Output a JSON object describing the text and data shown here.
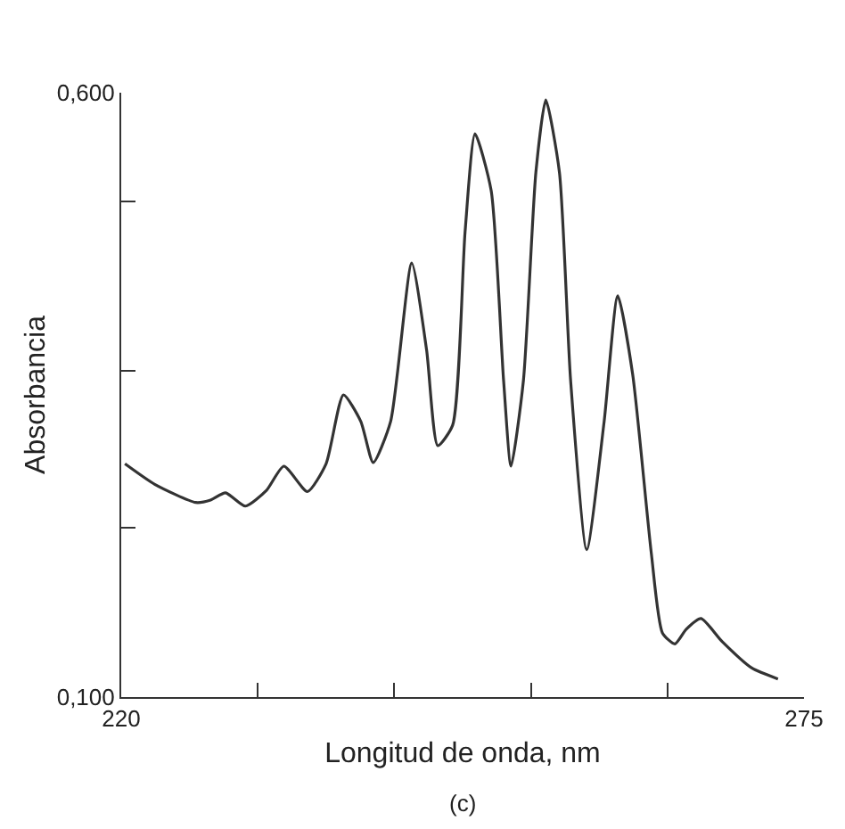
{
  "chart_data": {
    "type": "line",
    "xlabel": "Longitud de onda, nm",
    "ylabel": "Absorbancia",
    "annotations": [
      "(c)"
    ],
    "xlim": [
      220,
      275
    ],
    "ylim": [
      0.1,
      0.6
    ],
    "xticks": [
      220,
      {
        "value": 231,
        "label": null
      },
      {
        "value": 242,
        "label": null
      },
      {
        "value": 253,
        "label": null
      },
      {
        "value": 264,
        "label": null
      },
      275
    ],
    "yticks": [
      {
        "value": 0.1,
        "label": "0,100"
      },
      {
        "value": 0.24,
        "label": null
      },
      {
        "value": 0.37,
        "label": null
      },
      {
        "value": 0.51,
        "label": null
      },
      {
        "value": 0.6,
        "label": "0,600"
      }
    ],
    "marker": "none",
    "line_style": "solid",
    "series": [
      {
        "color": "#333333",
        "x": [
          220.3,
          222.7,
          226.0,
          227.2,
          228.4,
          230.0,
          231.7,
          233.1,
          235.0,
          236.5,
          237.9,
          239.3,
          240.3,
          241.7,
          243.4,
          244.6,
          245.5,
          246.7,
          247.7,
          248.5,
          249.8,
          250.8,
          251.4,
          252.4,
          253.4,
          254.2,
          255.3,
          256.2,
          257.5,
          258.9,
          260.0,
          261.2,
          262.7,
          263.6,
          264.6,
          265.5,
          266.7,
          268.4,
          270.8,
          272.9
        ],
        "values": [
          0.293,
          0.276,
          0.261,
          0.263,
          0.269,
          0.258,
          0.271,
          0.291,
          0.27,
          0.293,
          0.35,
          0.328,
          0.294,
          0.328,
          0.459,
          0.387,
          0.308,
          0.325,
          0.485,
          0.566,
          0.519,
          0.362,
          0.291,
          0.362,
          0.534,
          0.594,
          0.534,
          0.362,
          0.222,
          0.328,
          0.432,
          0.367,
          0.219,
          0.153,
          0.144,
          0.156,
          0.165,
          0.146,
          0.124,
          0.115
        ]
      }
    ]
  }
}
